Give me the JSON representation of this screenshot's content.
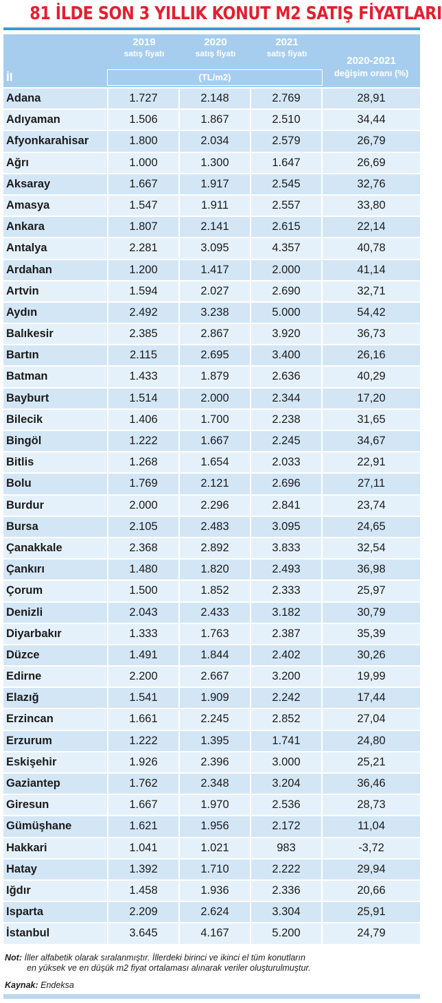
{
  "title": "81 İLDE SON 3 YILLIK KONUT M2 SATIŞ FİYATLARI",
  "header": {
    "il": "İl",
    "col_2019_year": "2019",
    "col_2019_sub": "satış fiyatı",
    "col_2020_year": "2020",
    "col_2020_sub": "satış fiyatı",
    "col_2021_year": "2021",
    "col_2021_sub": "satış fiyatı",
    "unit": "(TL/m2)",
    "change_year": "2020-2021",
    "change_sub": "değişim oranı (%)"
  },
  "rows": [
    [
      "Adana",
      "1.727",
      "2.148",
      "2.769",
      "28,91"
    ],
    [
      "Adıyaman",
      "1.506",
      "1.867",
      "2.510",
      "34,44"
    ],
    [
      "Afyonkarahisar",
      "1.800",
      "2.034",
      "2.579",
      "26,79"
    ],
    [
      "Ağrı",
      "1.000",
      "1.300",
      "1.647",
      "26,69"
    ],
    [
      "Aksaray",
      "1.667",
      "1.917",
      "2.545",
      "32,76"
    ],
    [
      "Amasya",
      "1.547",
      "1.911",
      "2.557",
      "33,80"
    ],
    [
      "Ankara",
      "1.807",
      "2.141",
      "2.615",
      "22,14"
    ],
    [
      "Antalya",
      "2.281",
      "3.095",
      "4.357",
      "40,78"
    ],
    [
      "Ardahan",
      "1.200",
      "1.417",
      "2.000",
      "41,14"
    ],
    [
      "Artvin",
      "1.594",
      "2.027",
      "2.690",
      "32,71"
    ],
    [
      "Aydın",
      "2.492",
      "3.238",
      "5.000",
      "54,42"
    ],
    [
      "Balıkesir",
      "2.385",
      "2.867",
      "3.920",
      "36,73"
    ],
    [
      "Bartın",
      "2.115",
      "2.695",
      "3.400",
      "26,16"
    ],
    [
      "Batman",
      "1.433",
      "1.879",
      "2.636",
      "40,29"
    ],
    [
      "Bayburt",
      "1.514",
      "2.000",
      "2.344",
      "17,20"
    ],
    [
      "Bilecik",
      "1.406",
      "1.700",
      "2.238",
      "31,65"
    ],
    [
      "Bingöl",
      "1.222",
      "1.667",
      "2.245",
      "34,67"
    ],
    [
      "Bitlis",
      "1.268",
      "1.654",
      "2.033",
      "22,91"
    ],
    [
      "Bolu",
      "1.769",
      "2.121",
      "2.696",
      "27,11"
    ],
    [
      "Burdur",
      "2.000",
      "2.296",
      "2.841",
      "23,74"
    ],
    [
      "Bursa",
      "2.105",
      "2.483",
      "3.095",
      "24,65"
    ],
    [
      "Çanakkale",
      "2.368",
      "2.892",
      "3.833",
      "32,54"
    ],
    [
      "Çankırı",
      "1.480",
      "1.820",
      "2.493",
      "36,98"
    ],
    [
      "Çorum",
      "1.500",
      "1.852",
      "2.333",
      "25,97"
    ],
    [
      "Denizli",
      "2.043",
      "2.433",
      "3.182",
      "30,79"
    ],
    [
      "Diyarbakır",
      "1.333",
      "1.763",
      "2.387",
      "35,39"
    ],
    [
      "Düzce",
      "1.491",
      "1.844",
      "2.402",
      "30,26"
    ],
    [
      "Edirne",
      "2.200",
      "2.667",
      "3.200",
      "19,99"
    ],
    [
      "Elazığ",
      "1.541",
      "1.909",
      "2.242",
      "17,44"
    ],
    [
      "Erzincan",
      "1.661",
      "2.245",
      "2.852",
      "27,04"
    ],
    [
      "Erzurum",
      "1.222",
      "1.395",
      "1.741",
      "24,80"
    ],
    [
      "Eskişehir",
      "1.926",
      "2.396",
      "3.000",
      "25,21"
    ],
    [
      "Gaziantep",
      "1.762",
      "2.348",
      "3.204",
      "36,46"
    ],
    [
      "Giresun",
      "1.667",
      "1.970",
      "2.536",
      "28,73"
    ],
    [
      "Gümüşhane",
      "1.621",
      "1.956",
      "2.172",
      "11,04"
    ],
    [
      "Hakkari",
      "1.041",
      "1.021",
      "983",
      "-3,72"
    ],
    [
      "Hatay",
      "1.392",
      "1.710",
      "2.222",
      "29,94"
    ],
    [
      "Iğdır",
      "1.458",
      "1.936",
      "2.336",
      "20,66"
    ],
    [
      "Isparta",
      "2.209",
      "2.624",
      "3.304",
      "25,91"
    ],
    [
      "İstanbul",
      "3.645",
      "4.167",
      "5.200",
      "24,79"
    ]
  ],
  "note": {
    "label": "Not:",
    "line1": "İller alfabetik olarak sıralanmıştır. İllerdeki birinci ve ikinci el tüm konutların",
    "line2": "en yüksek ve en düşük m2 fiyat ortalaması alınarak veriler oluşturulmuştur."
  },
  "source": {
    "label": "Kaynak:",
    "value": "Endeksa"
  },
  "colors": {
    "title": "#e3202f",
    "header_bg": "#a6cdee",
    "row_odd": "#d3e6f6",
    "row_even": "#e5f1fa",
    "rule": "#3b98d4"
  }
}
